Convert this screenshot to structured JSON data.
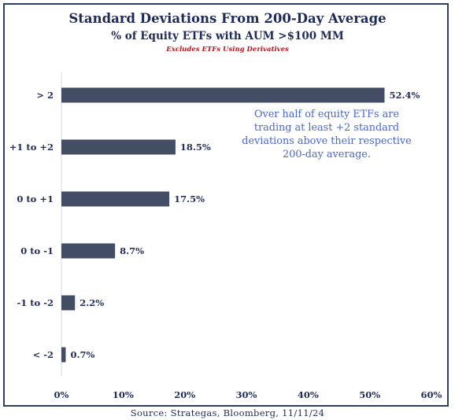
{
  "chart_data": {
    "type": "bar",
    "orientation": "horizontal",
    "title": "Standard Deviations From 200-Day Average",
    "subtitle": "% of Equity ETFs with AUM >$100 MM",
    "note": "Excludes ETFs Using Derivatives",
    "categories": [
      "> 2",
      "+1 to +2",
      "0 to +1",
      "0 to -1",
      "-1 to -2",
      "< -2"
    ],
    "values": [
      52.4,
      18.5,
      17.5,
      8.7,
      2.2,
      0.7
    ],
    "data_labels": [
      "52.4%",
      "18.5%",
      "17.5%",
      "8.7%",
      "2.2%",
      "0.7%"
    ],
    "xlim": [
      0,
      60
    ],
    "xticks": [
      "0%",
      "10%",
      "20%",
      "30%",
      "40%",
      "50%",
      "60%"
    ],
    "annotation": "Over half of equity ETFs are trading at least +2 standard deviations above their respective 200-day average.",
    "grid": false,
    "legend": "none",
    "bar_color": "#434d63"
  },
  "source": "Source: Strategas, Bloomberg, 11/11/24"
}
